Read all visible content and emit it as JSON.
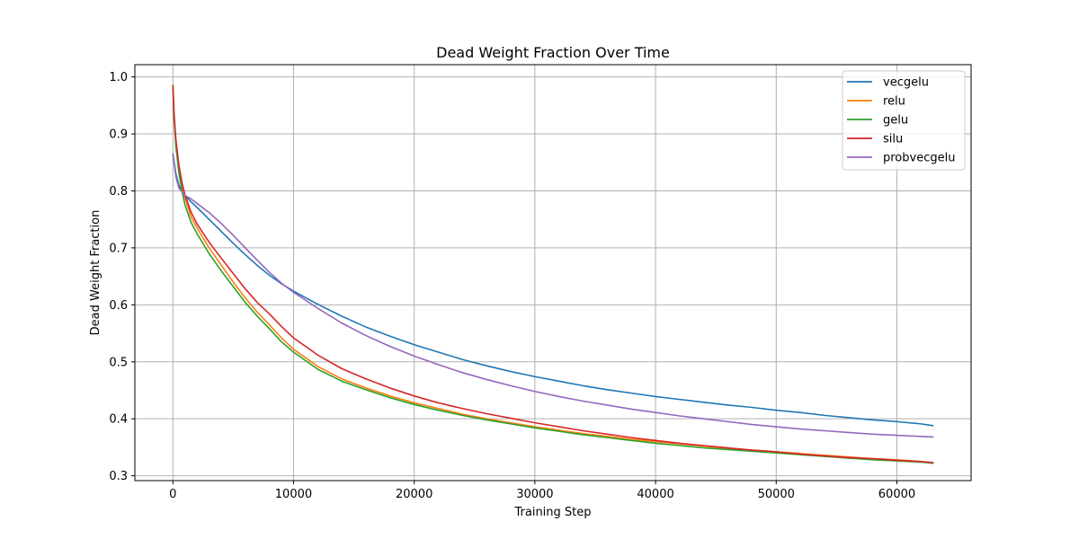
{
  "chart_data": {
    "type": "line",
    "title": "Dead Weight Fraction Over Time",
    "xlabel": "Training Step",
    "ylabel": "Dead Weight Fraction",
    "xlim": [
      -3150,
      66150
    ],
    "ylim": [
      0.2915,
      1.0215
    ],
    "xticks": [
      0,
      10000,
      20000,
      30000,
      40000,
      50000,
      60000
    ],
    "xtick_labels": [
      "0",
      "10000",
      "20000",
      "30000",
      "40000",
      "50000",
      "60000"
    ],
    "yticks": [
      0.3,
      0.4,
      0.5,
      0.6,
      0.7,
      0.8,
      0.9,
      1.0
    ],
    "ytick_labels": [
      "0.3",
      "0.4",
      "0.5",
      "0.6",
      "0.7",
      "0.8",
      "0.9",
      "1.0"
    ],
    "grid": true,
    "legend_position": "top-right",
    "series": [
      {
        "name": "vecgelu",
        "color": "#1f77b4",
        "x": [
          0,
          250,
          500,
          1000,
          1500,
          2000,
          3000,
          4000,
          5000,
          6000,
          7000,
          8000,
          9000,
          10000,
          12000,
          14000,
          16000,
          18000,
          20000,
          22000,
          24000,
          26000,
          28000,
          30000,
          32000,
          34000,
          36000,
          38000,
          40000,
          42000,
          44000,
          46000,
          48000,
          50000,
          52000,
          54000,
          56000,
          58000,
          60000,
          62000,
          63000
        ],
        "y": [
          0.865,
          0.83,
          0.81,
          0.792,
          0.781,
          0.771,
          0.75,
          0.729,
          0.708,
          0.688,
          0.669,
          0.652,
          0.637,
          0.624,
          0.601,
          0.58,
          0.561,
          0.545,
          0.53,
          0.517,
          0.504,
          0.493,
          0.483,
          0.474,
          0.466,
          0.458,
          0.451,
          0.445,
          0.439,
          0.434,
          0.429,
          0.424,
          0.42,
          0.415,
          0.411,
          0.406,
          0.402,
          0.398,
          0.395,
          0.391,
          0.388
        ]
      },
      {
        "name": "relu",
        "color": "#ff7f0e",
        "x": [
          0,
          100,
          250,
          500,
          750,
          1000,
          1500,
          2000,
          3000,
          4000,
          5000,
          6000,
          7000,
          8000,
          9000,
          10000,
          12000,
          14000,
          16000,
          18000,
          20000,
          22000,
          24000,
          26000,
          28000,
          30000,
          32000,
          34000,
          36000,
          38000,
          40000,
          42000,
          44000,
          46000,
          48000,
          50000,
          52000,
          54000,
          56000,
          58000,
          60000,
          62000,
          63000
        ],
        "y": [
          0.985,
          0.93,
          0.885,
          0.84,
          0.81,
          0.788,
          0.755,
          0.735,
          0.7,
          0.67,
          0.64,
          0.612,
          0.587,
          0.565,
          0.542,
          0.522,
          0.492,
          0.47,
          0.454,
          0.44,
          0.428,
          0.418,
          0.408,
          0.4,
          0.393,
          0.386,
          0.38,
          0.374,
          0.369,
          0.364,
          0.36,
          0.356,
          0.352,
          0.348,
          0.345,
          0.342,
          0.339,
          0.336,
          0.333,
          0.33,
          0.328,
          0.325,
          0.323
        ]
      },
      {
        "name": "gelu",
        "color": "#2ca02c",
        "x": [
          0,
          100,
          250,
          500,
          750,
          1000,
          1500,
          2000,
          3000,
          4000,
          5000,
          6000,
          7000,
          8000,
          9000,
          10000,
          12000,
          14000,
          16000,
          18000,
          20000,
          22000,
          24000,
          26000,
          28000,
          30000,
          32000,
          34000,
          36000,
          38000,
          40000,
          42000,
          44000,
          46000,
          48000,
          50000,
          52000,
          54000,
          56000,
          58000,
          60000,
          62000,
          63000
        ],
        "y": [
          0.985,
          0.925,
          0.878,
          0.832,
          0.8,
          0.776,
          0.745,
          0.725,
          0.69,
          0.66,
          0.632,
          0.604,
          0.58,
          0.558,
          0.535,
          0.517,
          0.487,
          0.466,
          0.451,
          0.437,
          0.425,
          0.415,
          0.406,
          0.398,
          0.391,
          0.384,
          0.378,
          0.372,
          0.367,
          0.362,
          0.357,
          0.353,
          0.349,
          0.346,
          0.343,
          0.34,
          0.337,
          0.334,
          0.331,
          0.328,
          0.326,
          0.324,
          0.322
        ]
      },
      {
        "name": "silu",
        "color": "#d62728",
        "x": [
          0,
          100,
          250,
          500,
          750,
          1000,
          1500,
          2000,
          3000,
          4000,
          5000,
          6000,
          7000,
          8000,
          9000,
          10000,
          12000,
          14000,
          16000,
          18000,
          20000,
          22000,
          24000,
          26000,
          28000,
          30000,
          32000,
          34000,
          36000,
          38000,
          40000,
          42000,
          44000,
          46000,
          48000,
          50000,
          52000,
          54000,
          56000,
          58000,
          60000,
          62000,
          63000
        ],
        "y": [
          0.985,
          0.935,
          0.89,
          0.845,
          0.815,
          0.793,
          0.763,
          0.742,
          0.71,
          0.682,
          0.655,
          0.628,
          0.604,
          0.584,
          0.562,
          0.542,
          0.512,
          0.488,
          0.47,
          0.454,
          0.44,
          0.428,
          0.418,
          0.409,
          0.401,
          0.393,
          0.386,
          0.379,
          0.373,
          0.367,
          0.362,
          0.357,
          0.353,
          0.349,
          0.345,
          0.342,
          0.338,
          0.335,
          0.332,
          0.33,
          0.327,
          0.325,
          0.323
        ]
      },
      {
        "name": "probvecgelu",
        "color": "#9467bd",
        "x": [
          0,
          250,
          500,
          1000,
          1500,
          2000,
          3000,
          4000,
          5000,
          6000,
          7000,
          8000,
          9000,
          10000,
          12000,
          14000,
          16000,
          18000,
          20000,
          22000,
          24000,
          26000,
          28000,
          30000,
          32000,
          34000,
          36000,
          38000,
          40000,
          42000,
          44000,
          46000,
          48000,
          50000,
          52000,
          54000,
          56000,
          58000,
          60000,
          62000,
          63000
        ],
        "y": [
          0.865,
          0.825,
          0.805,
          0.792,
          0.786,
          0.778,
          0.762,
          0.743,
          0.722,
          0.7,
          0.678,
          0.657,
          0.638,
          0.622,
          0.594,
          0.568,
          0.546,
          0.527,
          0.51,
          0.495,
          0.481,
          0.469,
          0.458,
          0.448,
          0.439,
          0.431,
          0.424,
          0.417,
          0.411,
          0.405,
          0.4,
          0.395,
          0.39,
          0.386,
          0.382,
          0.379,
          0.376,
          0.373,
          0.371,
          0.369,
          0.368
        ]
      }
    ]
  }
}
